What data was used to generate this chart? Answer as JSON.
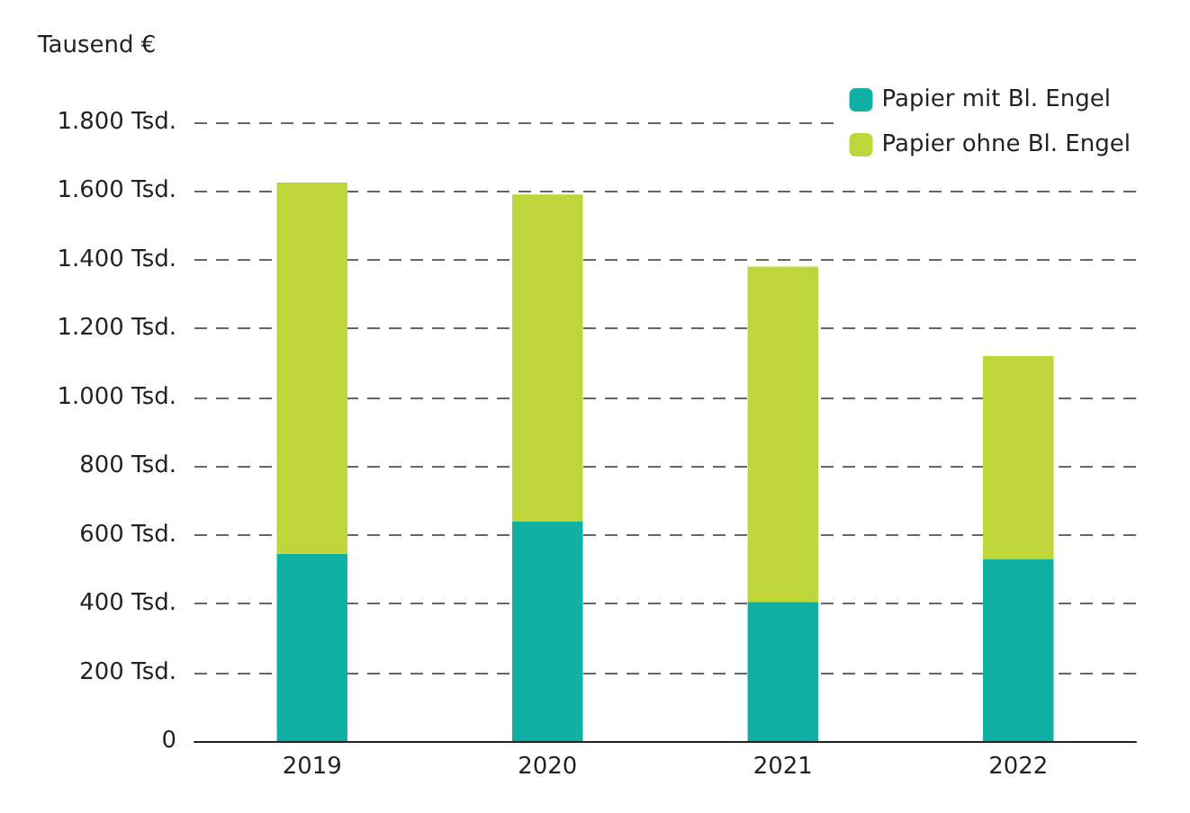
{
  "chart_data": {
    "type": "bar",
    "stacked": true,
    "ylabel": "Tausend €",
    "categories": [
      "2019",
      "2020",
      "2021",
      "2022"
    ],
    "series": [
      {
        "name": "Papier mit Bl. Engel",
        "color": "#10b1a4",
        "values": [
          545,
          640,
          405,
          530
        ]
      },
      {
        "name": "Papier ohne Bl. Engel",
        "color": "#bed63a",
        "values": [
          1080,
          950,
          975,
          590
        ]
      }
    ],
    "ylim": [
      0,
      1800
    ],
    "yticks": [
      0,
      {
        "value": 200,
        "label": "200 Tsd."
      },
      {
        "value": 400,
        "label": "400 Tsd."
      },
      {
        "value": 600,
        "label": "600 Tsd."
      },
      {
        "value": 800,
        "label": "800 Tsd."
      },
      {
        "value": 1000,
        "label": "1.000 Tsd."
      },
      {
        "value": 1200,
        "label": "1.200 Tsd."
      },
      {
        "value": 1400,
        "label": "1.400 Tsd."
      },
      {
        "value": 1600,
        "label": "1.600 Tsd."
      },
      {
        "value": 1800,
        "label": "1.800 Tsd."
      }
    ],
    "grid": "y",
    "legend": "top right"
  }
}
